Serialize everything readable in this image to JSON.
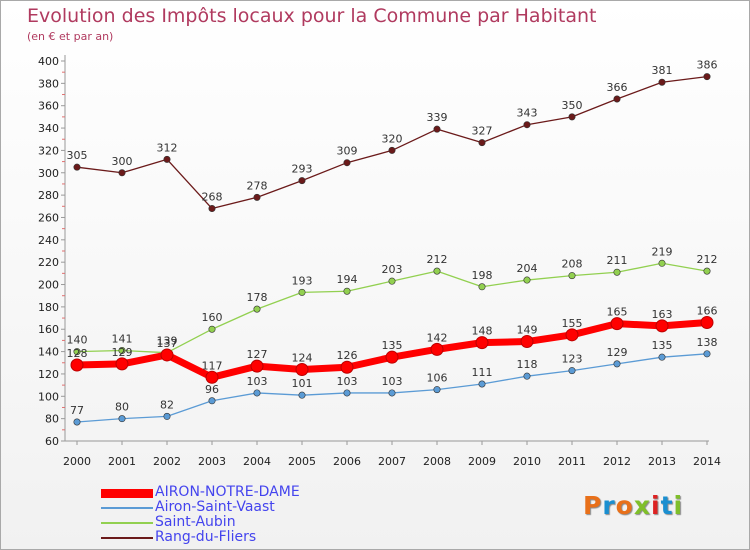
{
  "chart_data": {
    "type": "line",
    "title": "Evolution des Impôts locaux pour la Commune par Habitant",
    "subtitle": "(en € et par an)",
    "x": [
      "2000",
      "2001",
      "2002",
      "2003",
      "2004",
      "2005",
      "2006",
      "2007",
      "2008",
      "2009",
      "2010",
      "2011",
      "2012",
      "2013",
      "2014"
    ],
    "ylim": [
      60,
      400
    ],
    "yticks": [
      60,
      80,
      100,
      120,
      140,
      160,
      180,
      200,
      220,
      240,
      260,
      280,
      300,
      320,
      340,
      360,
      380,
      400
    ],
    "grid": false,
    "legend_position": "bottom",
    "series": [
      {
        "name": "AIRON-NOTRE-DAME",
        "color": "#ff0000",
        "values": [
          128,
          129,
          137,
          117,
          127,
          124,
          126,
          135,
          142,
          148,
          149,
          155,
          165,
          163,
          166
        ]
      },
      {
        "name": "Airon-Saint-Vaast",
        "color": "#5b9bd5",
        "values": [
          77,
          80,
          82,
          96,
          103,
          101,
          103,
          103,
          106,
          111,
          118,
          123,
          129,
          135,
          138
        ]
      },
      {
        "name": "Saint-Aubin",
        "color": "#92d050",
        "values": [
          140,
          141,
          139,
          160,
          178,
          193,
          194,
          203,
          212,
          198,
          204,
          208,
          211,
          219,
          212
        ]
      },
      {
        "name": "Rang-du-Fliers",
        "color": "#6b1a1a",
        "values": [
          305,
          300,
          312,
          268,
          278,
          293,
          309,
          320,
          339,
          327,
          343,
          350,
          366,
          381,
          386
        ]
      }
    ]
  },
  "logo": {
    "chars": [
      "P",
      "r",
      "o",
      "x",
      "i",
      "t",
      "i"
    ],
    "colors": [
      "#e8701a",
      "#1b8fd0",
      "#e8701a",
      "#7fbf2a",
      "#d22",
      "#1b8fd0",
      "#7fbf2a"
    ]
  }
}
